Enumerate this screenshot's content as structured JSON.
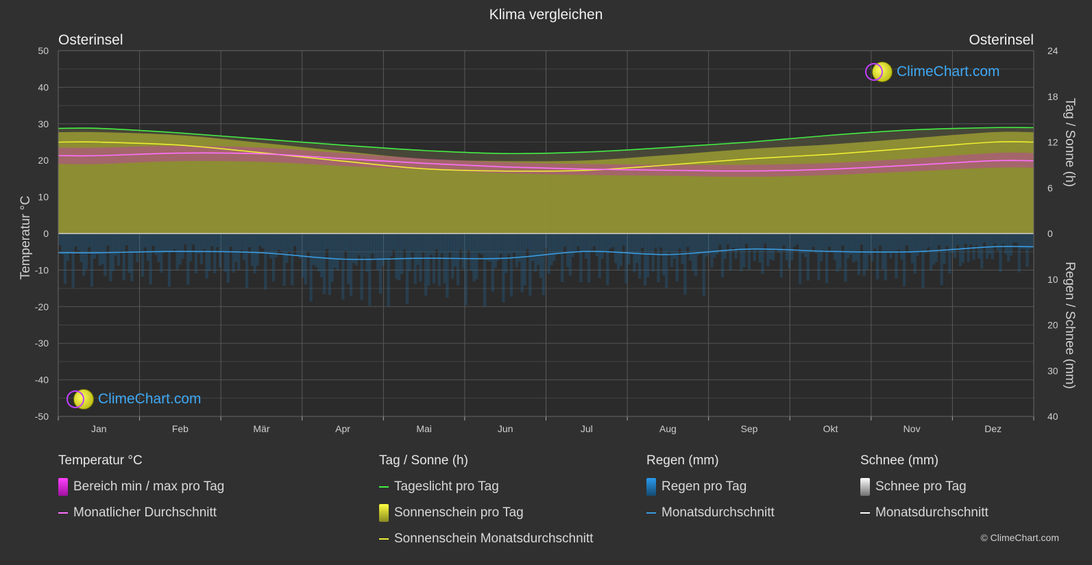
{
  "title": "Klima vergleichen",
  "location_left": "Osterinsel",
  "location_right": "Osterinsel",
  "axis_left_title": "Temperatur °C",
  "axis_right_top_title": "Tag / Sonne (h)",
  "axis_right_bottom_title": "Regen / Schnee (mm)",
  "brand": "ClimeChart.com",
  "copyright": "© ClimeChart.com",
  "colors": {
    "background": "#303030",
    "daylight": "#44ee44",
    "sunshine_fill": "#b8b830",
    "sunshine_avg": "#eeee33",
    "temp_range": "#d020d0",
    "temp_avg": "#ff70ff",
    "rain_bar": "#1e6fa8",
    "rain_avg": "#3a9be0",
    "snow_avg": "#ffffff"
  },
  "legend": {
    "temperature": {
      "header": "Temperatur °C",
      "items": [
        {
          "label": "Bereich min / max pro Tag",
          "icon": "magenta-box"
        },
        {
          "label": "Monatlicher Durchschnitt",
          "icon": "pink-line"
        }
      ]
    },
    "sun": {
      "header": "Tag / Sonne (h)",
      "items": [
        {
          "label": "Tageslicht pro Tag",
          "icon": "green-line"
        },
        {
          "label": "Sonnenschein pro Tag",
          "icon": "yellow-box"
        },
        {
          "label": "Sonnenschein Monatsdurchschnitt",
          "icon": "yellow-line"
        }
      ]
    },
    "rain": {
      "header": "Regen (mm)",
      "items": [
        {
          "label": "Regen pro Tag",
          "icon": "blue-box"
        },
        {
          "label": "Monatsdurchschnitt",
          "icon": "blue-line"
        }
      ]
    },
    "snow": {
      "header": "Schnee (mm)",
      "items": [
        {
          "label": "Schnee pro Tag",
          "icon": "white-box"
        },
        {
          "label": "Monatsdurchschnitt",
          "icon": "white-line"
        }
      ]
    }
  },
  "chart_data": {
    "type": "area",
    "title": "Klima vergleichen",
    "categories": [
      "Jan",
      "Feb",
      "Mär",
      "Apr",
      "Mai",
      "Jun",
      "Jul",
      "Aug",
      "Sep",
      "Okt",
      "Nov",
      "Dez"
    ],
    "y_left": {
      "label": "Temperatur °C",
      "ylim": [
        -50,
        50
      ],
      "ticks": [
        50,
        40,
        30,
        20,
        10,
        0,
        -10,
        -20,
        -30,
        -40,
        -50
      ]
    },
    "y_right_top": {
      "label": "Tag / Sonne (h)",
      "ylim": [
        0,
        24
      ],
      "ticks": [
        24,
        18,
        12,
        6,
        0
      ]
    },
    "y_right_bottom": {
      "label": "Regen / Schnee (mm)",
      "ylim": [
        0,
        40
      ],
      "ticks": [
        0,
        10,
        20,
        30,
        40
      ]
    },
    "grid": true,
    "series": [
      {
        "name": "Tageslicht pro Tag",
        "axis": "hours",
        "values": [
          13.8,
          13.2,
          12.4,
          11.6,
          10.9,
          10.5,
          10.7,
          11.3,
          12.0,
          12.9,
          13.6,
          13.9
        ]
      },
      {
        "name": "Sonnenschein Monatsdurchschnitt",
        "axis": "hours",
        "values": [
          12.0,
          11.6,
          10.6,
          9.5,
          8.5,
          8.2,
          8.3,
          9.0,
          9.8,
          10.4,
          11.2,
          12.0
        ]
      },
      {
        "name": "Monatlicher Durchschnitt",
        "axis": "temperature",
        "values": [
          21.3,
          22.0,
          21.8,
          20.5,
          19.2,
          18.2,
          17.6,
          17.3,
          17.1,
          17.6,
          18.7,
          19.9
        ]
      },
      {
        "name": "Regen Monatsdurchschnitt",
        "axis": "rain",
        "values": [
          4.2,
          3.9,
          4.2,
          5.6,
          5.4,
          5.4,
          3.9,
          4.6,
          3.4,
          3.9,
          4.0,
          2.9
        ]
      },
      {
        "name": "Schnee Monatsdurchschnitt",
        "axis": "rain",
        "values": [
          0,
          0,
          0,
          0,
          0,
          0,
          0,
          0,
          0,
          0,
          0,
          0
        ]
      }
    ],
    "temp_range": {
      "max": [
        23.5,
        24.0,
        23.5,
        22.0,
        20.5,
        19.5,
        19.0,
        18.8,
        18.8,
        19.3,
        20.5,
        22.0
      ],
      "min": [
        19.0,
        19.8,
        19.6,
        18.5,
        17.5,
        16.5,
        16.0,
        15.8,
        15.5,
        16.0,
        17.0,
        18.0
      ]
    }
  }
}
